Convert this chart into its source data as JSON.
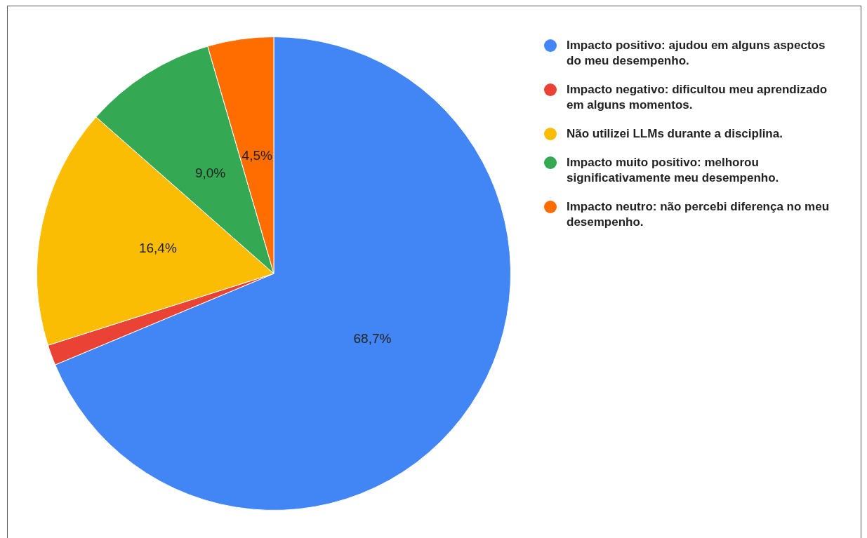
{
  "chart_data": {
    "type": "pie",
    "categories": [
      "Impacto positivo: ajudou em alguns aspectos do meu desempenho.",
      "Impacto negativo: dificultou meu aprendizado em alguns momentos.",
      "Não utilizei LLMs durante a disciplina.",
      "Impacto muito positivo: melhorou significativamente meu desempenho.",
      "Impacto neutro: não percebi diferença no meu desempenho."
    ],
    "values": [
      68.7,
      1.4,
      16.4,
      9.0,
      4.5
    ],
    "colors": [
      "#4285f4",
      "#ea4335",
      "#fbbc04",
      "#34a853",
      "#ff6d01"
    ],
    "value_labels": [
      "68,7%",
      null,
      "16,4%",
      "9,0%",
      "4,5%"
    ],
    "legend": "top right"
  }
}
